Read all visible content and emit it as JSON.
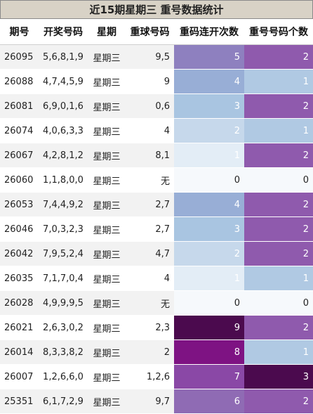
{
  "title": "近15期星期三 重号数据统计",
  "headers": [
    "期号",
    "开奖号码",
    "星期",
    "重球号码",
    "重码连开次数",
    "重号号码个数"
  ],
  "rows": [
    {
      "issue": "26095",
      "numbers": "5,6,8,1,9",
      "weekday": "星期三",
      "repeat_balls": "9,5",
      "streak": "5",
      "count": "2",
      "streak_color": "#8e80bf",
      "count_color": "#8f5aad"
    },
    {
      "issue": "26088",
      "numbers": "4,7,4,5,9",
      "weekday": "星期三",
      "repeat_balls": "9",
      "streak": "4",
      "count": "1",
      "streak_color": "#98aed6",
      "count_color": "#b0c9e3"
    },
    {
      "issue": "26081",
      "numbers": "6,9,0,1,6",
      "weekday": "星期三",
      "repeat_balls": "0,6",
      "streak": "3",
      "count": "2",
      "streak_color": "#a9c5e1",
      "count_color": "#8f5aad"
    },
    {
      "issue": "26074",
      "numbers": "4,0,6,3,3",
      "weekday": "星期三",
      "repeat_balls": "4",
      "streak": "2",
      "count": "1",
      "streak_color": "#c6d8eb",
      "count_color": "#b0c9e3"
    },
    {
      "issue": "26067",
      "numbers": "4,2,8,1,2",
      "weekday": "星期三",
      "repeat_balls": "8,1",
      "streak": "1",
      "count": "2",
      "streak_color": "#e3edf6",
      "count_color": "#8f5aad"
    },
    {
      "issue": "26060",
      "numbers": "1,1,8,0,0",
      "weekday": "星期三",
      "repeat_balls": "无",
      "streak": "0",
      "count": "0",
      "streak_color": "#f6f9fc",
      "count_color": "#f6f9fc"
    },
    {
      "issue": "26053",
      "numbers": "7,4,4,9,2",
      "weekday": "星期三",
      "repeat_balls": "2,7",
      "streak": "4",
      "count": "2",
      "streak_color": "#98aed6",
      "count_color": "#8f5aad"
    },
    {
      "issue": "26046",
      "numbers": "7,0,3,2,3",
      "weekday": "星期三",
      "repeat_balls": "2,7",
      "streak": "3",
      "count": "2",
      "streak_color": "#a9c5e1",
      "count_color": "#8f5aad"
    },
    {
      "issue": "26042",
      "numbers": "7,9,5,2,4",
      "weekday": "星期三",
      "repeat_balls": "4,7",
      "streak": "2",
      "count": "2",
      "streak_color": "#c6d8eb",
      "count_color": "#8f5aad"
    },
    {
      "issue": "26035",
      "numbers": "7,1,7,0,4",
      "weekday": "星期三",
      "repeat_balls": "4",
      "streak": "1",
      "count": "1",
      "streak_color": "#e3edf6",
      "count_color": "#b0c9e3"
    },
    {
      "issue": "26028",
      "numbers": "4,9,9,9,5",
      "weekday": "星期三",
      "repeat_balls": "无",
      "streak": "0",
      "count": "0",
      "streak_color": "#f6f9fc",
      "count_color": "#f6f9fc"
    },
    {
      "issue": "26021",
      "numbers": "2,6,3,0,2",
      "weekday": "星期三",
      "repeat_balls": "2,3",
      "streak": "9",
      "count": "2",
      "streak_color": "#4b0a4e",
      "count_color": "#8f5aad"
    },
    {
      "issue": "26014",
      "numbers": "8,3,3,8,2",
      "weekday": "星期三",
      "repeat_balls": "2",
      "streak": "8",
      "count": "1",
      "streak_color": "#7e1383",
      "count_color": "#b0c9e3"
    },
    {
      "issue": "26007",
      "numbers": "1,2,6,6,0",
      "weekday": "星期三",
      "repeat_balls": "1,2,6",
      "streak": "7",
      "count": "3",
      "streak_color": "#8a48a6",
      "count_color": "#4b0a4e"
    },
    {
      "issue": "25351",
      "numbers": "6,1,7,2,9",
      "weekday": "星期三",
      "repeat_balls": "9,7",
      "streak": "6",
      "count": "2",
      "streak_color": "#8f6bb4",
      "count_color": "#8f5aad"
    }
  ]
}
